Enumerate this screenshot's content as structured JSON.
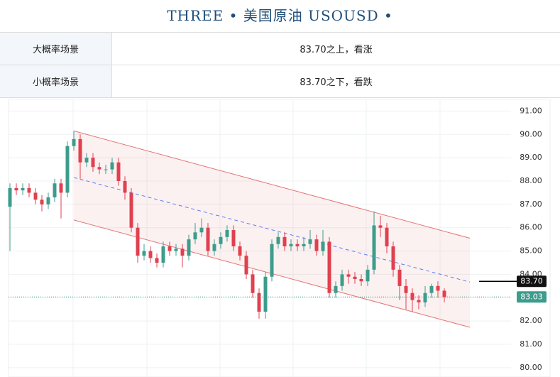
{
  "header": {
    "title": "THREE •  美国原油  USOUSD  •"
  },
  "table": {
    "rows": [
      [
        "大概率场景",
        "83.70之上，看涨"
      ],
      [
        "小概率场景",
        "83.70之下，看跌"
      ]
    ]
  },
  "chart_data": {
    "type": "candlestick",
    "open": [
      86.9,
      87.7,
      87.6,
      87.7,
      87.5,
      87.2,
      87.0,
      87.3,
      87.9,
      87.5,
      89.5,
      89.8,
      88.8,
      89.0,
      88.6,
      88.5,
      88.5,
      88.8,
      88.0,
      87.5,
      86.0,
      84.8,
      85.0,
      84.7,
      84.5,
      85.2,
      85.0,
      85.1,
      84.8,
      85.5,
      85.8,
      86.0,
      85.0,
      85.3,
      85.6,
      85.9,
      85.2,
      84.8,
      84.0,
      83.2,
      82.4,
      83.9,
      85.3,
      85.6,
      85.2,
      85.3,
      85.2,
      85.3,
      85.5,
      85.0,
      85.4,
      83.2,
      83.5,
      84.0,
      83.9,
      83.8,
      83.7,
      84.2,
      86.1,
      86.0,
      85.2,
      84.2,
      83.5,
      83.2,
      82.9,
      82.8,
      83.2,
      83.5,
      83.3
    ],
    "high": [
      87.9,
      87.9,
      87.9,
      87.9,
      87.7,
      87.4,
      87.5,
      88.1,
      88.1,
      89.7,
      90.15,
      90.0,
      89.2,
      89.2,
      88.8,
      88.7,
      89.0,
      89.0,
      88.2,
      87.7,
      86.2,
      85.3,
      85.2,
      84.9,
      85.4,
      85.4,
      85.3,
      85.3,
      85.7,
      86.2,
      86.4,
      86.2,
      85.5,
      85.8,
      86.1,
      86.1,
      85.4,
      85.0,
      84.2,
      83.4,
      84.1,
      85.5,
      85.8,
      85.8,
      85.5,
      85.5,
      85.6,
      85.9,
      85.7,
      85.9,
      85.6,
      83.7,
      84.2,
      84.2,
      84.1,
      84.0,
      84.4,
      86.7,
      86.5,
      86.2,
      85.4,
      84.4,
      83.8,
      83.4,
      83.1,
      83.5,
      83.6,
      83.7,
      83.4
    ],
    "low": [
      85.0,
      87.4,
      87.4,
      87.3,
      87.0,
      86.7,
      86.8,
      87.1,
      86.4,
      87.3,
      89.3,
      88.1,
      88.6,
      88.4,
      88.3,
      88.3,
      88.3,
      87.8,
      87.2,
      85.8,
      84.5,
      84.6,
      84.5,
      84.3,
      84.3,
      84.8,
      84.8,
      84.3,
      84.6,
      85.3,
      85.6,
      84.8,
      84.8,
      85.1,
      85.4,
      85.0,
      84.6,
      83.8,
      83.0,
      82.1,
      82.1,
      83.7,
      85.1,
      85.0,
      85.0,
      85.0,
      85.0,
      85.1,
      84.8,
      84.8,
      83.0,
      83.0,
      83.3,
      83.6,
      83.6,
      83.5,
      83.5,
      84.0,
      85.6,
      84.9,
      83.9,
      82.9,
      82.5,
      82.4,
      82.5,
      82.6,
      83.0,
      83.0,
      82.8
    ],
    "close": [
      87.7,
      87.6,
      87.7,
      87.5,
      87.2,
      87.0,
      87.3,
      87.9,
      87.5,
      89.5,
      89.8,
      88.8,
      89.0,
      88.6,
      88.5,
      88.5,
      88.8,
      88.0,
      87.5,
      86.0,
      84.8,
      85.0,
      84.7,
      84.5,
      85.2,
      85.0,
      85.1,
      84.8,
      85.5,
      85.8,
      86.0,
      85.0,
      85.3,
      85.6,
      85.9,
      85.2,
      84.8,
      84.0,
      83.2,
      82.4,
      83.9,
      85.3,
      85.6,
      85.2,
      85.3,
      85.2,
      85.3,
      85.5,
      85.0,
      85.4,
      83.2,
      83.5,
      84.0,
      83.9,
      83.8,
      83.7,
      84.2,
      86.1,
      86.0,
      85.2,
      84.2,
      83.5,
      83.2,
      82.9,
      82.8,
      83.2,
      83.5,
      83.3,
      83.03
    ],
    "up_color": "#3d9c8c",
    "down_color": "#e0404f",
    "channel_x": [
      10,
      72
    ],
    "channel_upper": [
      90.15,
      85.55
    ],
    "channel_middle": [
      88.15,
      83.67
    ],
    "channel_lower": [
      86.33,
      81.73
    ],
    "channel_color": "#e57373",
    "middle_color": "#5b7ff0",
    "level": {
      "value": 83.7,
      "label": "83.70"
    },
    "last_price": 83.03,
    "ylim": [
      79.6,
      91.5
    ],
    "yticks": [
      {
        "value": 80,
        "label": "80.00"
      },
      {
        "value": 81,
        "label": "81.00"
      },
      {
        "value": 82,
        "label": "82.00"
      },
      {
        "value": 83,
        "label": "83.00"
      },
      {
        "value": 84,
        "label": "84.00"
      },
      {
        "value": 85,
        "label": "85.00"
      },
      {
        "value": 86,
        "label": "86.00"
      },
      {
        "value": 87,
        "label": "87.00"
      },
      {
        "value": 88,
        "label": "88.00"
      },
      {
        "value": 89,
        "label": "89.00"
      },
      {
        "value": 90,
        "label": "90.00"
      },
      {
        "value": 91,
        "label": "91.00"
      }
    ],
    "grid": true
  }
}
